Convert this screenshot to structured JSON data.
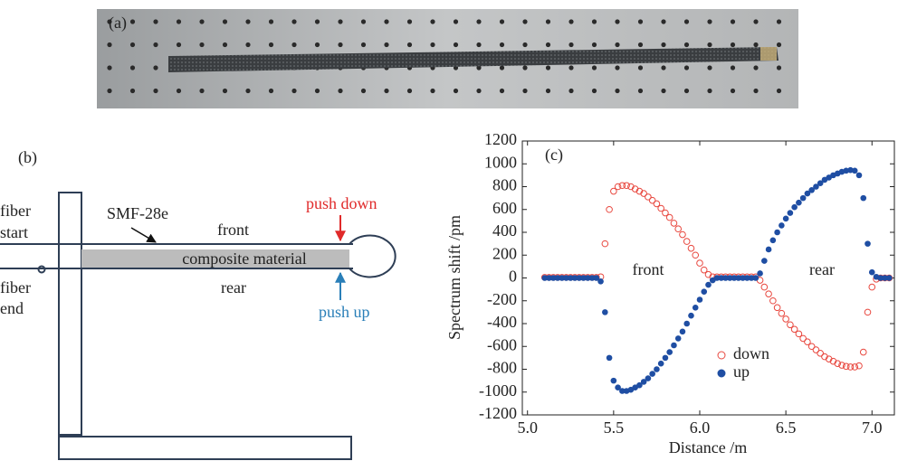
{
  "photo": {
    "label": "(a)"
  },
  "diagram": {
    "label": "(b)",
    "fiber_start": [
      "fiber",
      "start"
    ],
    "fiber_end": [
      "fiber",
      "end"
    ],
    "fiber_type": "SMF-28e",
    "front": "front",
    "rear": "rear",
    "material": "composite material",
    "push_down": "push down",
    "push_up": "push up"
  },
  "chart_data": {
    "type": "scatter",
    "panel_label": "(c)",
    "x_label": "Distance /m",
    "y_label": "Spectrum shift /pm",
    "annotations": [
      "front",
      "rear"
    ],
    "x": [
      5.1,
      5.125,
      5.15,
      5.175,
      5.2,
      5.225,
      5.25,
      5.275,
      5.3,
      5.325,
      5.35,
      5.375,
      5.4,
      5.425,
      5.45,
      5.475,
      5.5,
      5.525,
      5.55,
      5.575,
      5.6,
      5.625,
      5.65,
      5.675,
      5.7,
      5.725,
      5.75,
      5.775,
      5.8,
      5.825,
      5.85,
      5.875,
      5.9,
      5.925,
      5.95,
      5.975,
      6.0,
      6.025,
      6.05,
      6.075,
      6.1,
      6.125,
      6.15,
      6.175,
      6.2,
      6.225,
      6.25,
      6.275,
      6.3,
      6.325,
      6.35,
      6.375,
      6.4,
      6.425,
      6.45,
      6.475,
      6.5,
      6.525,
      6.55,
      6.575,
      6.6,
      6.625,
      6.65,
      6.675,
      6.7,
      6.725,
      6.75,
      6.775,
      6.8,
      6.825,
      6.85,
      6.875,
      6.9,
      6.925,
      6.95,
      6.975,
      7.0,
      7.025,
      7.05,
      7.075,
      7.1
    ],
    "series": [
      {
        "name": "down",
        "color": "#e8483f",
        "filled": false,
        "values": [
          5,
          5,
          5,
          5,
          5,
          5,
          5,
          5,
          5,
          5,
          5,
          5,
          5,
          10,
          300,
          600,
          760,
          800,
          810,
          810,
          800,
          780,
          760,
          740,
          710,
          680,
          650,
          610,
          570,
          530,
          480,
          430,
          380,
          320,
          260,
          200,
          130,
          70,
          30,
          10,
          10,
          10,
          10,
          10,
          10,
          10,
          10,
          10,
          10,
          10,
          -20,
          -80,
          -140,
          -200,
          -260,
          -310,
          -360,
          -410,
          -450,
          -490,
          -530,
          -560,
          -600,
          -630,
          -660,
          -690,
          -710,
          -730,
          -750,
          -765,
          -775,
          -780,
          -780,
          -770,
          -650,
          -300,
          -80,
          -10,
          0,
          0,
          0
        ]
      },
      {
        "name": "up",
        "color": "#1f4ea3",
        "filled": true,
        "values": [
          0,
          0,
          0,
          0,
          0,
          0,
          0,
          0,
          0,
          0,
          0,
          0,
          0,
          -30,
          -300,
          -700,
          -900,
          -960,
          -990,
          -990,
          -980,
          -960,
          -940,
          -910,
          -880,
          -840,
          -800,
          -750,
          -700,
          -650,
          -590,
          -530,
          -470,
          -400,
          -330,
          -260,
          -190,
          -120,
          -60,
          -20,
          0,
          0,
          0,
          0,
          0,
          0,
          0,
          0,
          0,
          0,
          40,
          150,
          250,
          330,
          400,
          460,
          520,
          570,
          620,
          660,
          700,
          740,
          770,
          800,
          830,
          860,
          880,
          900,
          915,
          930,
          940,
          945,
          940,
          900,
          700,
          300,
          50,
          10,
          0,
          0,
          0
        ]
      }
    ],
    "xlim": [
      4.97,
      7.13
    ],
    "ylim": [
      -1200,
      1200
    ],
    "xticks": [
      {
        "value": 5,
        "label": "5.0"
      },
      5.5,
      {
        "value": 6,
        "label": "6.0"
      },
      6.5,
      {
        "value": 7,
        "label": "7.0"
      }
    ],
    "yticks": [
      -1200,
      -1000,
      -800,
      -600,
      -400,
      -200,
      0,
      200,
      400,
      600,
      800,
      1000,
      1200
    ],
    "grid": false
  }
}
